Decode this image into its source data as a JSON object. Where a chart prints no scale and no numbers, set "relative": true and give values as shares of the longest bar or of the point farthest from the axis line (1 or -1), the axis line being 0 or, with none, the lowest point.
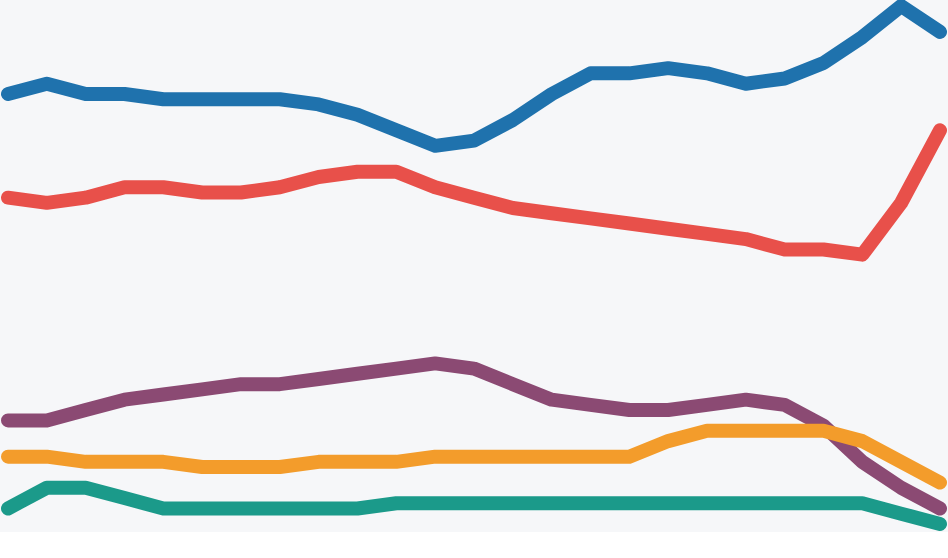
{
  "chart_data": {
    "type": "line",
    "relative": true,
    "categories": [
      null,
      null,
      null,
      null,
      null,
      null,
      null,
      null,
      null,
      null,
      null,
      null,
      null,
      null,
      null,
      null,
      null,
      null,
      null,
      null,
      null,
      null,
      null,
      null,
      null
    ],
    "series": [
      {
        "color": "#1f72ad",
        "values": [
          0.83,
          0.85,
          0.83,
          0.83,
          0.82,
          0.82,
          0.82,
          0.82,
          0.81,
          0.79,
          0.76,
          0.73,
          0.74,
          0.78,
          0.83,
          0.87,
          0.87,
          0.88,
          0.87,
          0.85,
          0.86,
          0.89,
          0.94,
          1,
          0.95
        ]
      },
      {
        "color": "#e8504a",
        "values": [
          0.63,
          0.62,
          0.63,
          0.65,
          0.65,
          0.64,
          0.64,
          0.65,
          0.67,
          0.68,
          0.68,
          0.65,
          0.63,
          0.61,
          0.6,
          0.59,
          0.58,
          0.57,
          0.56,
          0.55,
          0.53,
          0.53,
          0.52,
          0.62,
          0.76
        ]
      },
      {
        "color": "#8b4a73",
        "values": [
          0.2,
          0.2,
          0.22,
          0.24,
          0.25,
          0.26,
          0.27,
          0.27,
          0.28,
          0.29,
          0.3,
          0.31,
          0.3,
          0.27,
          0.24,
          0.23,
          0.22,
          0.22,
          0.23,
          0.24,
          0.23,
          0.19,
          0.12,
          0.07,
          0.03
        ]
      },
      {
        "color": "#f39c2b",
        "values": [
          0.13,
          0.13,
          0.12,
          0.12,
          0.12,
          0.11,
          0.11,
          0.11,
          0.12,
          0.12,
          0.12,
          0.13,
          0.13,
          0.13,
          0.13,
          0.13,
          0.13,
          0.16,
          0.18,
          0.18,
          0.18,
          0.18,
          0.16,
          0.12,
          0.08
        ]
      },
      {
        "color": "#1b9a8a",
        "values": [
          0.03,
          0.07,
          0.07,
          0.05,
          0.03,
          0.03,
          0.03,
          0.03,
          0.03,
          0.03,
          0.04,
          0.04,
          0.04,
          0.04,
          0.04,
          0.04,
          0.04,
          0.04,
          0.04,
          0.04,
          0.04,
          0.04,
          0.04,
          0.02,
          0
        ]
      }
    ]
  }
}
